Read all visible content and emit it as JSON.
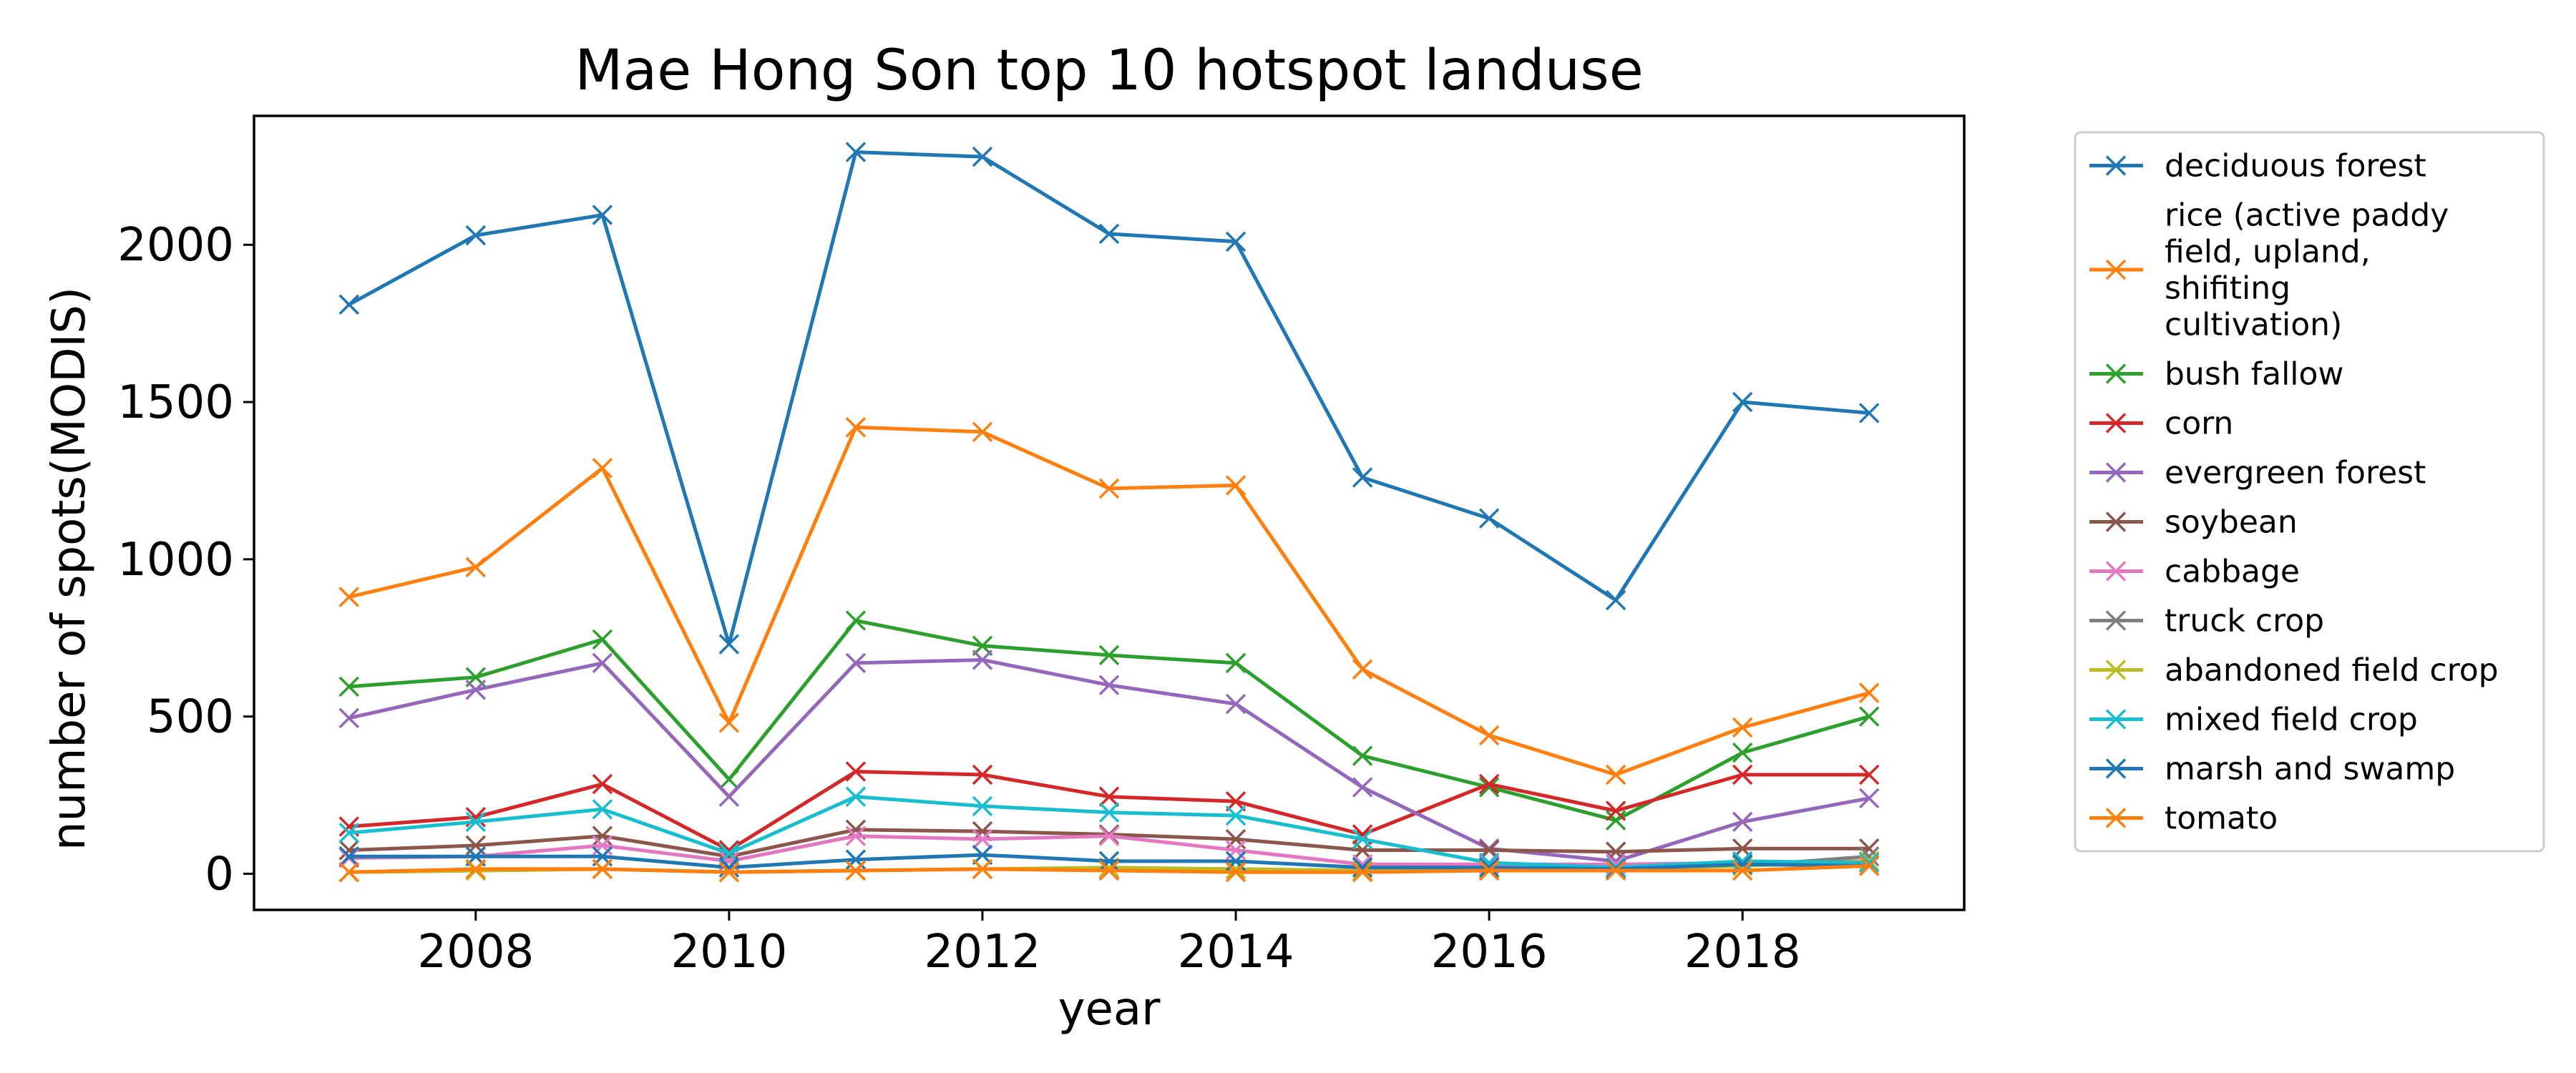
{
  "chart_data": {
    "type": "line",
    "title": "Mae Hong Son top 10 hotspot landuse",
    "xlabel": "year",
    "ylabel": "number of spots(MODIS)",
    "x": [
      2007,
      2008,
      2009,
      2010,
      2011,
      2012,
      2013,
      2014,
      2015,
      2016,
      2017,
      2018,
      2019
    ],
    "xlim": [
      2006.25,
      2019.75
    ],
    "ylim": [
      -115,
      2410
    ],
    "xticks": [
      2008,
      2010,
      2012,
      2014,
      2016,
      2018
    ],
    "yticks": [
      0,
      500,
      1000,
      1500,
      2000
    ],
    "grid": false,
    "marker": "x",
    "legend": {
      "placement": "outside-right"
    },
    "series": [
      {
        "name": "deciduous forest",
        "color": "#1f77b4",
        "values": [
          1810,
          2030,
          2095,
          730,
          2295,
          2280,
          2035,
          2010,
          1260,
          1130,
          870,
          1500,
          1465
        ]
      },
      {
        "name": "rice (active paddy field, upland, shifiting cultivation)",
        "color": "#ff7f0e",
        "legend_lines": [
          "rice (active paddy",
          "field, upland,",
          "shifiting",
          "cultivation)"
        ],
        "values": [
          880,
          975,
          1290,
          480,
          1420,
          1405,
          1225,
          1235,
          650,
          440,
          315,
          465,
          575
        ]
      },
      {
        "name": "bush fallow",
        "color": "#2ca02c",
        "values": [
          595,
          625,
          745,
          300,
          805,
          725,
          695,
          670,
          375,
          275,
          170,
          385,
          500
        ]
      },
      {
        "name": "corn",
        "color": "#d62728",
        "values": [
          150,
          180,
          285,
          75,
          325,
          315,
          245,
          230,
          125,
          285,
          200,
          315,
          315
        ]
      },
      {
        "name": "evergreen forest",
        "color": "#9467bd",
        "values": [
          495,
          585,
          670,
          245,
          670,
          680,
          600,
          540,
          275,
          80,
          40,
          165,
          240
        ]
      },
      {
        "name": "soybean",
        "color": "#8c564b",
        "values": [
          75,
          90,
          120,
          55,
          140,
          135,
          125,
          110,
          75,
          75,
          70,
          80,
          80
        ]
      },
      {
        "name": "cabbage",
        "color": "#e377c2",
        "values": [
          50,
          55,
          90,
          40,
          120,
          110,
          120,
          75,
          30,
          30,
          30,
          35,
          40
        ]
      },
      {
        "name": "truck crop",
        "color": "#7f7f7f",
        "values": [
          5,
          10,
          15,
          5,
          10,
          15,
          15,
          15,
          10,
          15,
          15,
          25,
          55
        ]
      },
      {
        "name": "abandoned field crop",
        "color": "#bcbd22",
        "values": [
          5,
          10,
          15,
          5,
          10,
          15,
          20,
          15,
          10,
          15,
          15,
          25,
          40
        ]
      },
      {
        "name": "mixed field crop",
        "color": "#17becf",
        "values": [
          130,
          165,
          205,
          65,
          245,
          215,
          195,
          185,
          110,
          35,
          20,
          40,
          35
        ]
      },
      {
        "name": "marsh and swamp",
        "color": "#1f77b4",
        "values": [
          55,
          55,
          55,
          20,
          45,
          60,
          40,
          40,
          20,
          20,
          15,
          30,
          25
        ]
      },
      {
        "name": "tomato",
        "color": "#ff7f0e",
        "values": [
          5,
          15,
          15,
          5,
          10,
          15,
          10,
          5,
          5,
          10,
          10,
          10,
          25
        ]
      }
    ]
  }
}
